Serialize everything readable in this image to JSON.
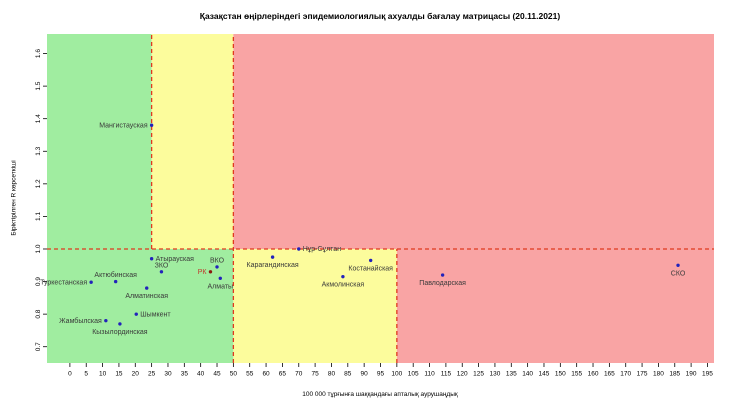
{
  "chart_data": {
    "type": "scatter",
    "title": "Қазақстан өңірлеріндегі эпидемиологиялық ахуалды бағалау матрицасы  (20.11.2021)",
    "xlabel": "100 000 тұрғынға шаққандағы апталық аурушаңдық",
    "ylabel": "Біріктірілген R көрсеткіші",
    "xlim": [
      -7,
      197
    ],
    "ylim": [
      0.65,
      1.66
    ],
    "x_ticks": [
      0,
      5,
      10,
      15,
      20,
      25,
      30,
      35,
      40,
      45,
      50,
      55,
      60,
      65,
      70,
      75,
      80,
      85,
      90,
      95,
      100,
      105,
      110,
      115,
      120,
      125,
      130,
      135,
      140,
      145,
      150,
      155,
      160,
      165,
      170,
      175,
      180,
      185,
      190,
      195
    ],
    "y_ticks": [
      0.7,
      0.8,
      0.9,
      1.0,
      1.1,
      1.2,
      1.3,
      1.4,
      1.5,
      1.6
    ],
    "grid": false,
    "legend": "none",
    "colors": {
      "zone_green": "#A0EDA0",
      "zone_yellow": "#FCFC9C",
      "zone_red": "#F9A4A4",
      "threshold_line": "#E0391F",
      "point_region": "#2222BB",
      "point_rk": "#8B1A10",
      "label_rk": "#C0392B",
      "label_text": "#3A3A3A",
      "axis_text": "#000000"
    },
    "zones": [
      {
        "name": "green-upper",
        "x0": -7,
        "x1": 25,
        "y0": 1.0,
        "y1": 1.66,
        "color": "zone_green"
      },
      {
        "name": "yellow-upper",
        "x0": 25,
        "x1": 50,
        "y0": 1.0,
        "y1": 1.66,
        "color": "zone_yellow"
      },
      {
        "name": "red-upper",
        "x0": 50,
        "x1": 197,
        "y0": 1.0,
        "y1": 1.66,
        "color": "zone_red"
      },
      {
        "name": "green-lower",
        "x0": -7,
        "x1": 50,
        "y0": 0.65,
        "y1": 1.0,
        "color": "zone_green"
      },
      {
        "name": "yellow-lower",
        "x0": 50,
        "x1": 100,
        "y0": 0.65,
        "y1": 1.0,
        "color": "zone_yellow"
      },
      {
        "name": "red-lower",
        "x0": 100,
        "x1": 197,
        "y0": 0.65,
        "y1": 1.0,
        "color": "zone_red"
      }
    ],
    "threshold_lines": [
      {
        "name": "r-equals-1",
        "orientation": "horizontal",
        "at": 1.0,
        "from": -7,
        "to": 197
      },
      {
        "name": "incidence-25-line",
        "orientation": "vertical",
        "at": 25,
        "from": 1.0,
        "to": 1.66
      },
      {
        "name": "incidence-50-line",
        "orientation": "vertical",
        "at": 50,
        "from": 0.65,
        "to": 1.66
      },
      {
        "name": "incidence-100-line",
        "orientation": "vertical",
        "at": 100,
        "from": 0.65,
        "to": 1.0
      }
    ],
    "points": [
      {
        "label": "Мангистауская",
        "x": 25,
        "y": 1.38,
        "label_pos": "left",
        "type": "region"
      },
      {
        "label": "Атырауская",
        "x": 25,
        "y": 0.97,
        "label_pos": "right",
        "type": "region"
      },
      {
        "label": "ЗКО",
        "x": 28,
        "y": 0.93,
        "label_pos": "above",
        "type": "region"
      },
      {
        "label": "ВКО",
        "x": 45,
        "y": 0.945,
        "label_pos": "above",
        "type": "region"
      },
      {
        "label": "РК",
        "x": 43,
        "y": 0.93,
        "label_pos": "left",
        "type": "country"
      },
      {
        "label": "Алматы",
        "x": 46,
        "y": 0.91,
        "label_pos": "below",
        "type": "region"
      },
      {
        "label": "Актюбинская",
        "x": 14,
        "y": 0.9,
        "label_pos": "above",
        "type": "region"
      },
      {
        "label": "Туркестанская",
        "x": 6.5,
        "y": 0.898,
        "label_pos": "left",
        "type": "region"
      },
      {
        "label": "Алматинская",
        "x": 23.5,
        "y": 0.88,
        "label_pos": "below",
        "type": "region"
      },
      {
        "label": "Шымкент",
        "x": 20.3,
        "y": 0.8,
        "label_pos": "right",
        "type": "region"
      },
      {
        "label": "Жамбылская",
        "x": 11,
        "y": 0.78,
        "label_pos": "left",
        "type": "region"
      },
      {
        "label": "Кызылординская",
        "x": 15.3,
        "y": 0.77,
        "label_pos": "below",
        "type": "region"
      },
      {
        "label": "Карагандинская",
        "x": 62,
        "y": 0.975,
        "label_pos": "below",
        "type": "region"
      },
      {
        "label": "Нұр-Сұлтан",
        "x": 70,
        "y": 1.0,
        "label_pos": "right",
        "type": "region"
      },
      {
        "label": "Костанайская",
        "x": 92,
        "y": 0.965,
        "label_pos": "below",
        "type": "region"
      },
      {
        "label": "Акмолинская",
        "x": 83.5,
        "y": 0.915,
        "label_pos": "below",
        "type": "region"
      },
      {
        "label": "Павлодарская",
        "x": 114,
        "y": 0.92,
        "label_pos": "below",
        "type": "region"
      },
      {
        "label": "СКО",
        "x": 186,
        "y": 0.95,
        "label_pos": "below",
        "type": "region"
      }
    ]
  }
}
